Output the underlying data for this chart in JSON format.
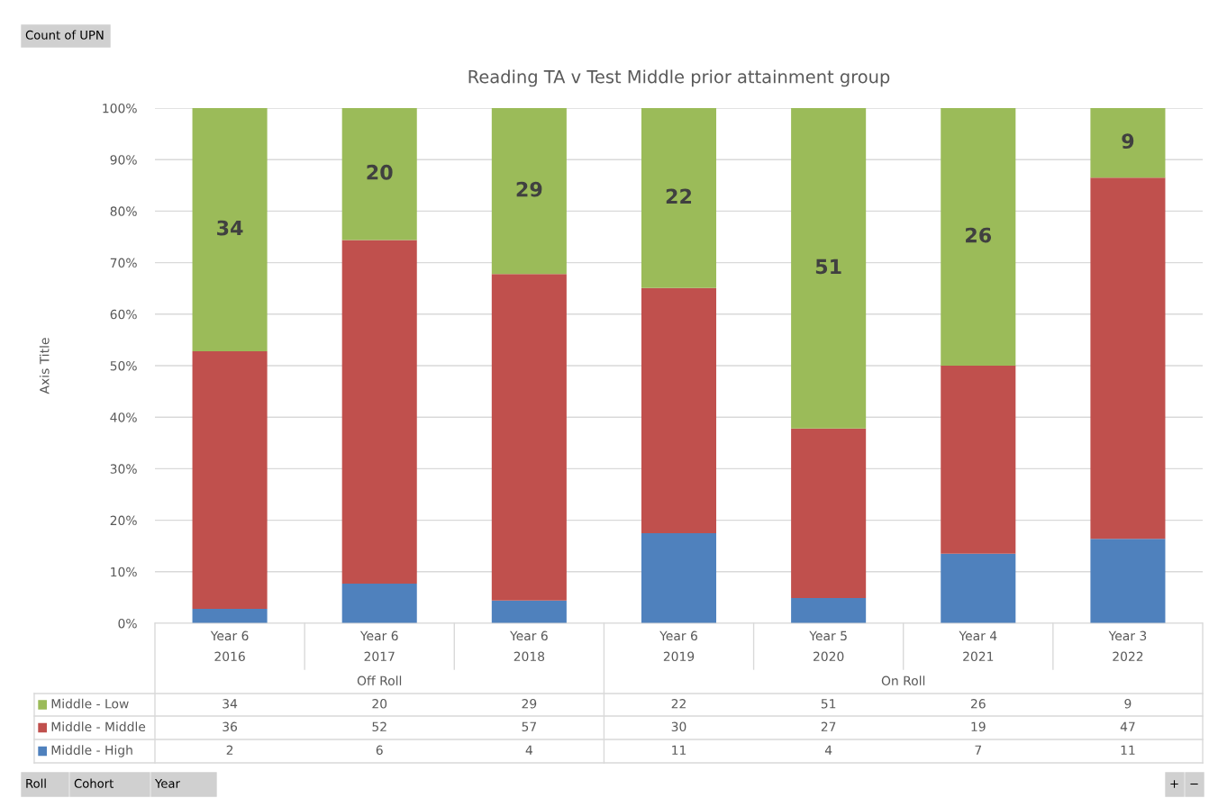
{
  "chart_data": {
    "type": "bar",
    "stacked": true,
    "title": "Reading TA v Test Middle prior attainment group",
    "ylabel": "Axis Title",
    "categories": [
      "Year 6\n2016",
      "Year 6\n2017",
      "Year 6\n2018",
      "Year 6\n2019",
      "Year 5\n2020",
      "Year 4\n2021",
      "Year 3\n2022"
    ],
    "series": [
      {
        "name": "Middle - High",
        "color": "#4f81bd",
        "values": [
          2.8,
          7.7,
          4.4,
          17.5,
          4.9,
          13.5,
          16.4
        ]
      },
      {
        "name": "Middle - Middle",
        "color": "#c0504d",
        "values": [
          50.0,
          66.7,
          63.4,
          47.6,
          32.9,
          36.5,
          70.1
        ]
      },
      {
        "name": "Middle - Low",
        "color": "#9bbb59",
        "values": [
          47.2,
          25.6,
          32.2,
          34.9,
          62.2,
          50.0,
          13.5
        ]
      }
    ],
    "ylim": [
      0,
      100
    ],
    "yticks": [
      {
        "value": 0,
        "label": "0%"
      },
      {
        "value": 10,
        "label": "10%"
      },
      {
        "value": 20,
        "label": "20%"
      },
      {
        "value": 30,
        "label": "30%"
      },
      {
        "value": 40,
        "label": "40%"
      },
      {
        "value": 50,
        "label": "50%"
      },
      {
        "value": 60,
        "label": "60%"
      },
      {
        "value": 70,
        "label": "70%"
      },
      {
        "value": 80,
        "label": "80%"
      },
      {
        "value": 90,
        "label": "90%"
      },
      {
        "value": 100,
        "label": "100%"
      }
    ],
    "grid": "y",
    "legend": "bottom left",
    "annotations": [
      "34",
      "20",
      "29",
      "22",
      "51",
      "26",
      "9",
      "Off Roll",
      "On Roll",
      "34",
      "20",
      "29",
      "22",
      "51",
      "26",
      "9",
      "36",
      "52",
      "57",
      "30",
      "27",
      "19",
      "47",
      "2",
      "6",
      "4",
      "11",
      "4",
      "7",
      "11",
      "Count of UPN",
      "Roll",
      "Cohort",
      "Year",
      "+",
      "−"
    ]
  }
}
